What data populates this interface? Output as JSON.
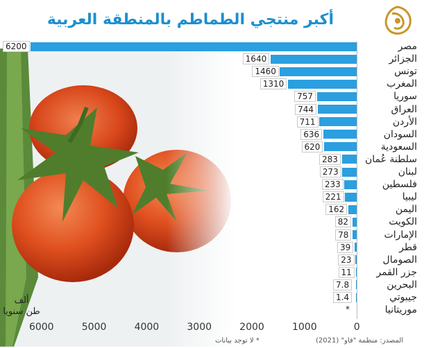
{
  "chart_data": {
    "type": "bar",
    "orientation": "horizontal",
    "title": "أكبر منتجي الطماطم بالمنطقة العربية",
    "unit_label_line1": "ألف",
    "unit_label_line2": "طن سنويا",
    "categories": [
      "مصر",
      "الجزائر",
      "تونس",
      "المغرب",
      "سوريا",
      "العراق",
      "الأردن",
      "السودان",
      "السعودية",
      "سلطنة عُمان",
      "لبنان",
      "فلسطين",
      "ليبيا",
      "اليمن",
      "الكويت",
      "الإمارات",
      "قطر",
      "الصومال",
      "جزر القمر",
      "البحرين",
      "جيبوتي",
      "موريتانيا"
    ],
    "values": [
      6200,
      1640,
      1460,
      1310,
      757,
      744,
      711,
      636,
      620,
      283,
      273,
      233,
      221,
      162,
      82,
      78,
      39,
      23,
      11,
      7.8,
      1.4,
      null
    ],
    "value_labels": [
      "6200",
      "1640",
      "1460",
      "1310",
      "757",
      "744",
      "711",
      "636",
      "620",
      "283",
      "273",
      "233",
      "221",
      "162",
      "82",
      "78",
      "39",
      "23",
      "11",
      "7.8",
      "1.4",
      "*"
    ],
    "xlim": [
      0,
      6200
    ],
    "xticks": [
      "6000",
      "5000",
      "4000",
      "3000",
      "2000",
      "1000",
      "0"
    ],
    "bar_color": "#2b9fe0",
    "title_color": "#1b8fd0",
    "footnote": "* لا توجد بيانات",
    "source": "المصدر: منظمة \"فاو\" (2021)"
  }
}
